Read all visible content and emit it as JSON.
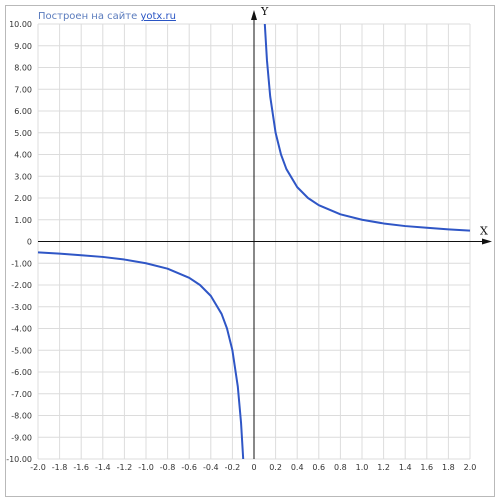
{
  "credit": {
    "prefix": "Построен на сайте",
    "link": "yotx.ru"
  },
  "chart_data": {
    "type": "line",
    "title": "",
    "xlabel": "X",
    "ylabel": "Y",
    "xlim": [
      -2.0,
      2.0
    ],
    "ylim": [
      -10.0,
      10.0
    ],
    "grid": true,
    "x_ticks": [
      {
        "value": -2.0,
        "label": "-2.0"
      },
      {
        "value": -1.8,
        "label": "-1.8"
      },
      {
        "value": -1.6,
        "label": "-1.6"
      },
      {
        "value": -1.4,
        "label": "-1.4"
      },
      {
        "value": -1.2,
        "label": "-1.2"
      },
      {
        "value": -1.0,
        "label": "-1.0"
      },
      {
        "value": -0.8,
        "label": "-0.8"
      },
      {
        "value": -0.6,
        "label": "-0.6"
      },
      {
        "value": -0.4,
        "label": "-0.4"
      },
      {
        "value": -0.2,
        "label": "-0.2"
      },
      {
        "value": 0,
        "label": "0"
      },
      {
        "value": 0.2,
        "label": "0.2"
      },
      {
        "value": 0.4,
        "label": "0.4"
      },
      {
        "value": 0.6,
        "label": "0.6"
      },
      {
        "value": 0.8,
        "label": "0.8"
      },
      {
        "value": 1.0,
        "label": "1.0"
      },
      {
        "value": 1.2,
        "label": "1.2"
      },
      {
        "value": 1.4,
        "label": "1.4"
      },
      {
        "value": 1.6,
        "label": "1.6"
      },
      {
        "value": 1.8,
        "label": "1.8"
      },
      {
        "value": 2.0,
        "label": "2.0"
      }
    ],
    "y_ticks": [
      {
        "value": 10,
        "label": "10.00"
      },
      {
        "value": 9,
        "label": "9.00"
      },
      {
        "value": 8,
        "label": "8.00"
      },
      {
        "value": 7,
        "label": "7.00"
      },
      {
        "value": 6,
        "label": "6.00"
      },
      {
        "value": 5,
        "label": "5.00"
      },
      {
        "value": 4,
        "label": "4.00"
      },
      {
        "value": 3,
        "label": "3.00"
      },
      {
        "value": 2,
        "label": "2.00"
      },
      {
        "value": 1,
        "label": "1.00"
      },
      {
        "value": 0,
        "label": "0"
      },
      {
        "value": -1,
        "label": "-1.00"
      },
      {
        "value": -2,
        "label": "-2.00"
      },
      {
        "value": -3,
        "label": "-3.00"
      },
      {
        "value": -4,
        "label": "-4.00"
      },
      {
        "value": -5,
        "label": "-5.00"
      },
      {
        "value": -6,
        "label": "-6.00"
      },
      {
        "value": -7,
        "label": "-7.00"
      },
      {
        "value": -8,
        "label": "-8.00"
      },
      {
        "value": -9,
        "label": "-9.00"
      },
      {
        "value": -10,
        "label": "-10.00"
      }
    ],
    "series": [
      {
        "color": "#2f56c6",
        "branches": [
          {
            "x": [
              -2.0,
              -1.8,
              -1.6,
              -1.4,
              -1.2,
              -1.0,
              -0.8,
              -0.6,
              -0.5,
              -0.4,
              -0.3,
              -0.25,
              -0.2,
              -0.15,
              -0.12,
              -0.1
            ],
            "y": [
              -0.5,
              -0.56,
              -0.63,
              -0.71,
              -0.83,
              -1.0,
              -1.25,
              -1.67,
              -2.0,
              -2.5,
              -3.33,
              -4.0,
              -5.0,
              -6.67,
              -8.33,
              -10.0
            ]
          },
          {
            "x": [
              0.1,
              0.12,
              0.15,
              0.2,
              0.25,
              0.3,
              0.4,
              0.5,
              0.6,
              0.8,
              1.0,
              1.2,
              1.4,
              1.6,
              1.8,
              2.0
            ],
            "y": [
              10.0,
              8.33,
              6.67,
              5.0,
              4.0,
              3.33,
              2.5,
              2.0,
              1.67,
              1.25,
              1.0,
              0.83,
              0.71,
              0.63,
              0.56,
              0.5
            ]
          }
        ]
      }
    ]
  }
}
